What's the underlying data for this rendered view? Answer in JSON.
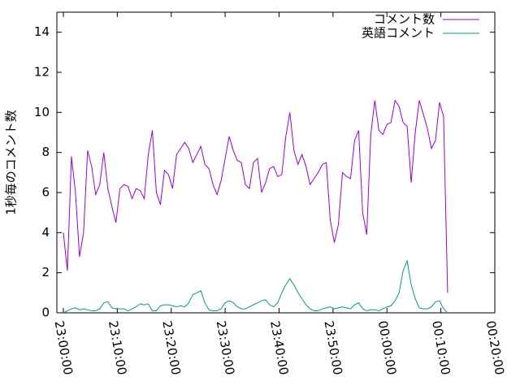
{
  "chart_data": {
    "type": "line",
    "y_label": "1秒毎のコメント数",
    "x": [
      0,
      0.75,
      1.5,
      2.25,
      3,
      3.75,
      4.5,
      5.25,
      6,
      6.75,
      7.5,
      8.25,
      9,
      9.75,
      10.5,
      11.25,
      12,
      12.75,
      13.5,
      14.25,
      15,
      15.75,
      16.5,
      17.25,
      18,
      18.75,
      19.5,
      20.25,
      21,
      21.75,
      22.5,
      23.25,
      24,
      24.75,
      25.5,
      26.25,
      27,
      27.75,
      28.5,
      29.25,
      30,
      30.75,
      31.5,
      32.25,
      33,
      33.75,
      34.5,
      35.25,
      36,
      36.75,
      37.5,
      38.25,
      39,
      39.75,
      40.5,
      41.25,
      42,
      42.75,
      43.5,
      44.25,
      45,
      45.75,
      46.5,
      47.25,
      48,
      48.75,
      49.5,
      50.25,
      51,
      51.75,
      52.5,
      53.25,
      54,
      54.75,
      55.5,
      56.25,
      57,
      57.75,
      58.5,
      59.25,
      60,
      60.75,
      61.5,
      62.25,
      63,
      63.75,
      64.5,
      65.25,
      66,
      66.75,
      67.5,
      68.25,
      69,
      69.75,
      70.5,
      71.25
    ],
    "series": [
      {
        "name": "コメント数",
        "color": "#9400d3",
        "values": [
          4.0,
          2.1,
          7.8,
          6.0,
          2.8,
          4.0,
          8.1,
          7.3,
          5.9,
          6.4,
          8.0,
          6.2,
          5.3,
          4.5,
          6.2,
          6.4,
          6.3,
          5.7,
          6.2,
          6.1,
          5.7,
          7.9,
          9.1,
          6.0,
          5.4,
          7.1,
          6.9,
          6.2,
          7.9,
          8.2,
          8.5,
          8.2,
          7.5,
          7.9,
          8.3,
          7.4,
          7.2,
          6.4,
          5.9,
          6.6,
          7.7,
          8.8,
          8.1,
          7.6,
          7.5,
          6.4,
          6.2,
          7.5,
          7.7,
          6.0,
          6.5,
          7.2,
          7.3,
          6.8,
          6.9,
          8.8,
          10.0,
          8.1,
          7.4,
          7.9,
          7.3,
          6.4,
          6.7,
          7.0,
          7.4,
          7.5,
          4.6,
          3.5,
          4.4,
          7.0,
          6.8,
          6.7,
          8.6,
          9.1,
          5.0,
          3.9,
          8.9,
          10.6,
          9.1,
          8.9,
          9.4,
          9.5,
          10.6,
          10.3,
          9.5,
          9.3,
          6.5,
          9.0,
          10.6,
          9.9,
          9.2,
          8.2,
          8.6,
          10.5,
          9.8,
          1.0
        ]
      },
      {
        "name": "英語コメント",
        "color": "#009e73",
        "values": [
          0.0,
          0.1,
          0.2,
          0.25,
          0.15,
          0.2,
          0.15,
          0.1,
          0.1,
          0.2,
          0.5,
          0.55,
          0.25,
          0.2,
          0.2,
          0.2,
          0.1,
          0.2,
          0.3,
          0.45,
          0.4,
          0.45,
          0.1,
          0.1,
          0.35,
          0.4,
          0.4,
          0.35,
          0.3,
          0.35,
          0.3,
          0.5,
          0.9,
          1.0,
          1.1,
          0.5,
          0.15,
          0.1,
          0.1,
          0.2,
          0.5,
          0.6,
          0.5,
          0.3,
          0.2,
          0.2,
          0.3,
          0.4,
          0.5,
          0.6,
          0.65,
          0.4,
          0.3,
          0.5,
          1.0,
          1.4,
          1.7,
          1.4,
          1.0,
          0.7,
          0.4,
          0.2,
          0.1,
          0.1,
          0.2,
          0.25,
          0.3,
          0.2,
          0.25,
          0.3,
          0.25,
          0.2,
          0.4,
          0.5,
          0.2,
          0.1,
          0.15,
          0.15,
          0.1,
          0.2,
          0.3,
          0.35,
          0.6,
          1.0,
          2.1,
          2.6,
          1.4,
          0.7,
          0.25,
          0.2,
          0.2,
          0.3,
          0.55,
          0.6,
          0.2,
          0.0
        ]
      }
    ],
    "xlim": [
      -1.2,
      80
    ],
    "xticks": [
      {
        "value": 0,
        "label": "23:00:00"
      },
      {
        "value": 10,
        "label": "23:10:00"
      },
      {
        "value": 20,
        "label": "23:20:00"
      },
      {
        "value": 30,
        "label": "23:30:00"
      },
      {
        "value": 40,
        "label": "23:40:00"
      },
      {
        "value": 50,
        "label": "23:50:00"
      },
      {
        "value": 60,
        "label": "00:00:00"
      },
      {
        "value": 70,
        "label": "00:10:00"
      },
      {
        "value": 80,
        "label": "00:20:00"
      }
    ],
    "ylim": [
      0,
      15
    ],
    "yticks": [
      0,
      2,
      4,
      6,
      8,
      10,
      12,
      14
    ],
    "legend": "top-right"
  }
}
